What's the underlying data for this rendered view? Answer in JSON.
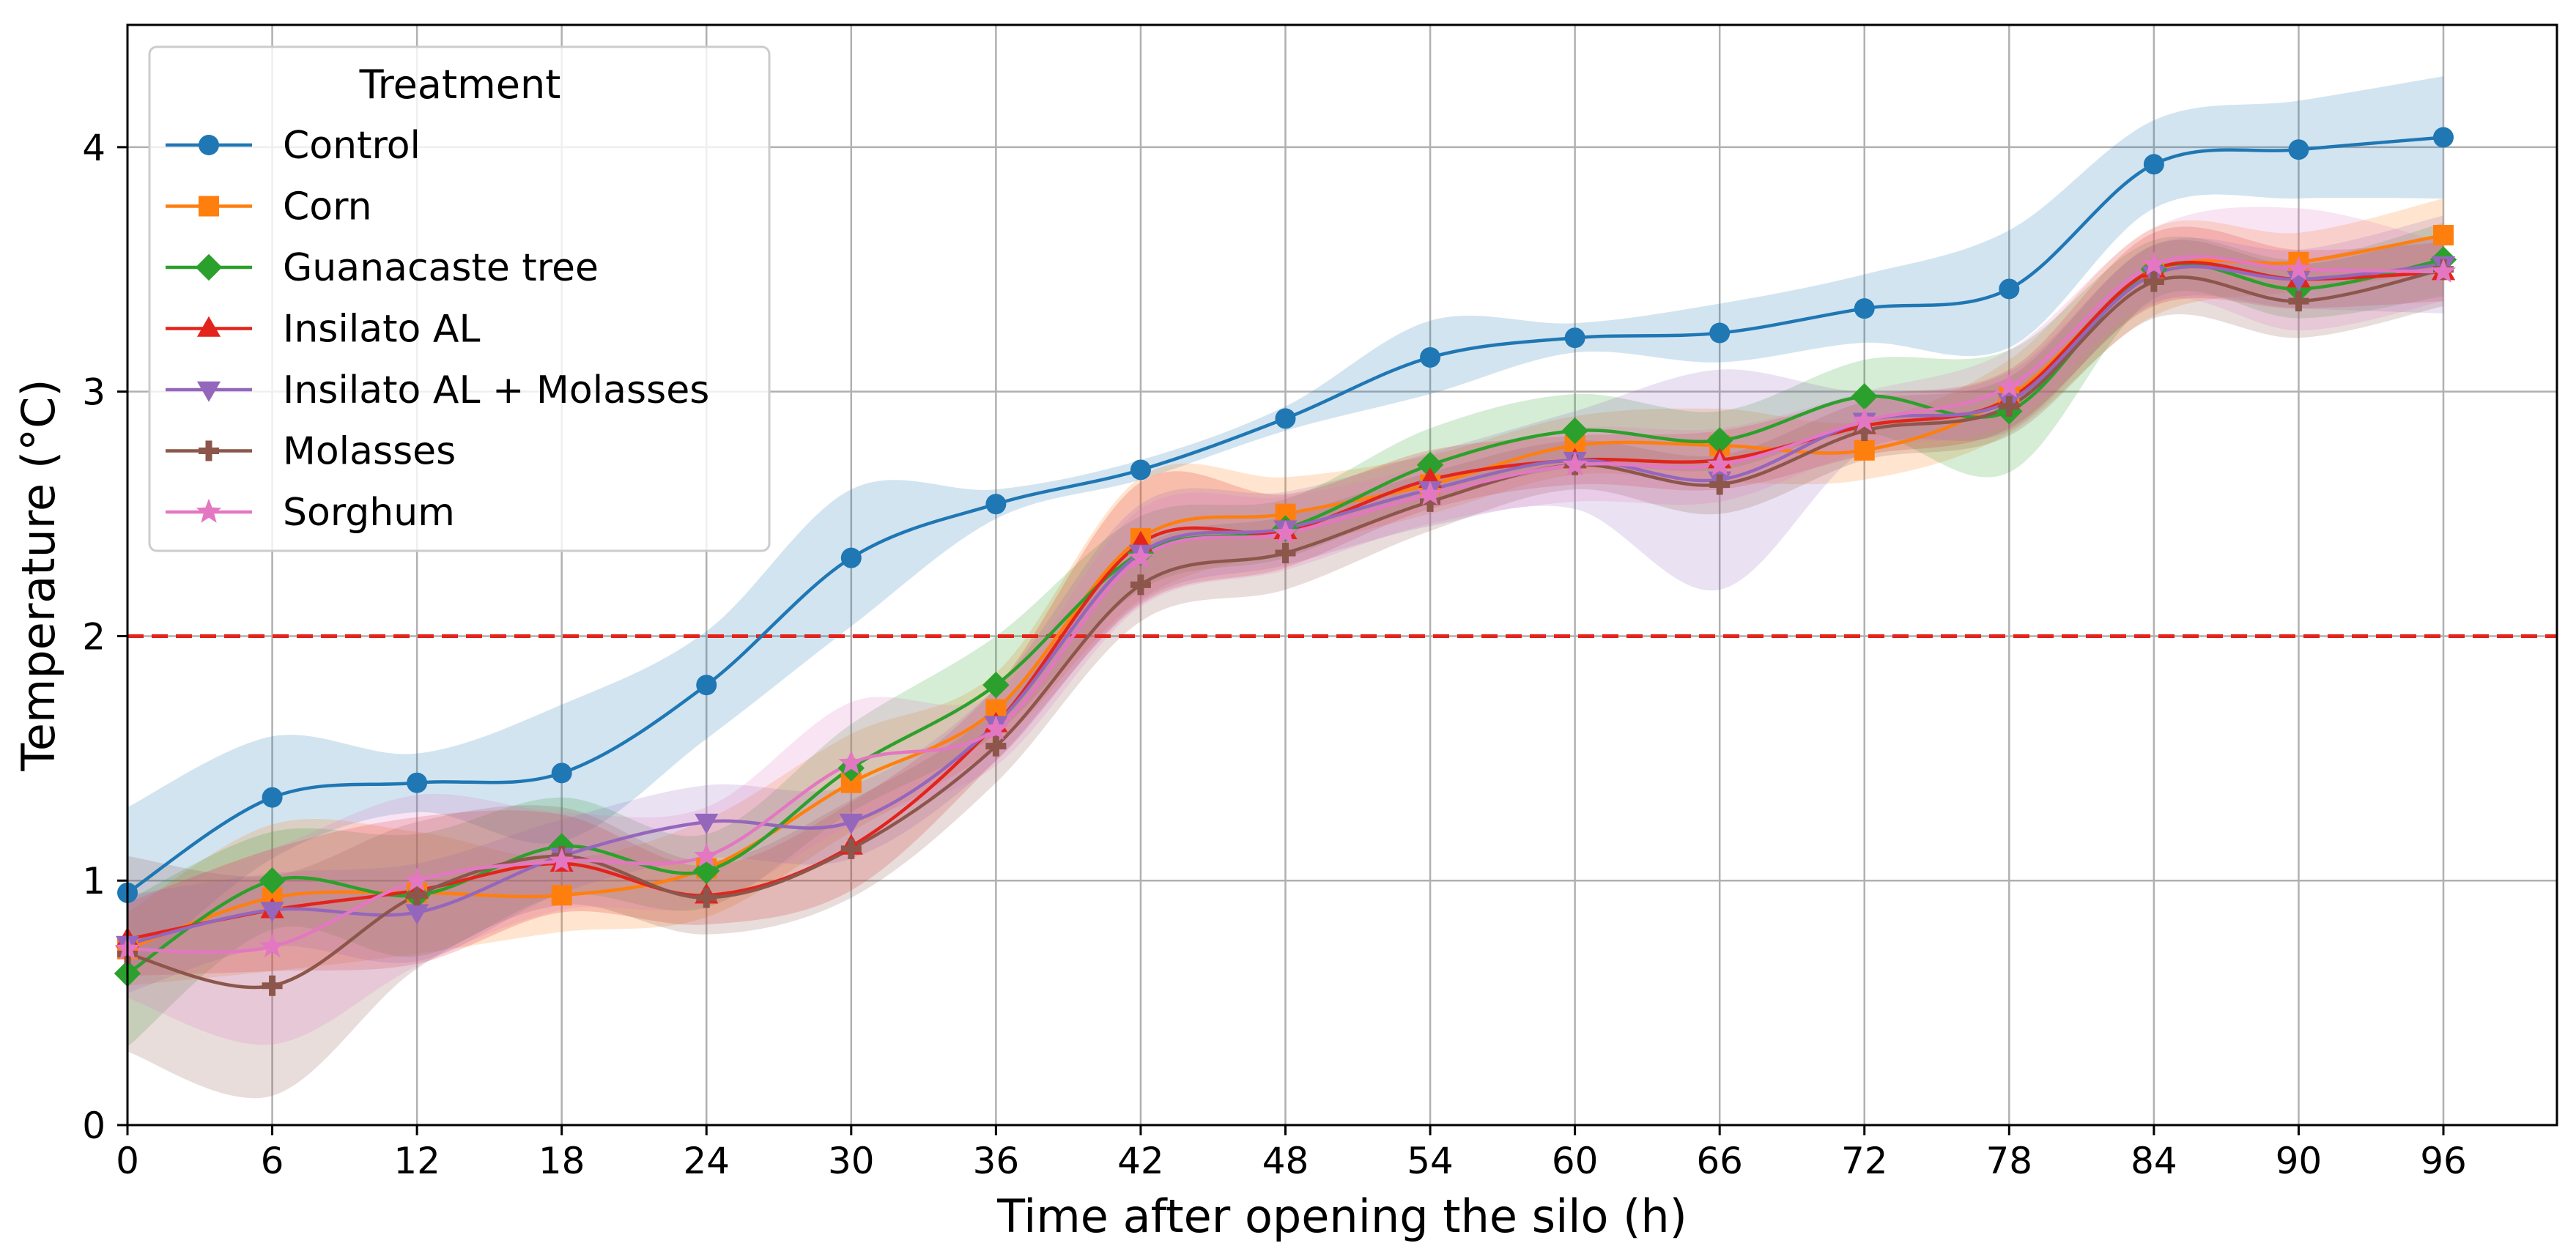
{
  "chart_data": {
    "type": "line",
    "xlabel": "Time after opening the silo (h)",
    "ylabel": "Temperature (°C)",
    "xlim": [
      0,
      96
    ],
    "ylim": [
      0,
      4.5
    ],
    "x": [
      0,
      6,
      12,
      18,
      24,
      30,
      36,
      42,
      48,
      54,
      60,
      66,
      72,
      78,
      84,
      90,
      96
    ],
    "xticks": [
      "0",
      "6",
      "12",
      "18",
      "24",
      "30",
      "36",
      "42",
      "48",
      "54",
      "60",
      "66",
      "72",
      "78",
      "84",
      "90",
      "96"
    ],
    "yticks": [
      "0",
      "1",
      "2",
      "3",
      "4"
    ],
    "grid": true,
    "legend_title": "Treatment",
    "legend_position": "top-left",
    "reference_line": {
      "y": 2,
      "color": "#e3241c",
      "style": "dashed"
    },
    "series": [
      {
        "name": "Control",
        "color": "#1f77b4",
        "marker": "circle",
        "values": [
          0.95,
          1.34,
          1.4,
          1.44,
          1.8,
          2.32,
          2.54,
          2.68,
          2.89,
          3.14,
          3.22,
          3.24,
          3.34,
          3.42,
          3.93,
          3.99,
          4.04
        ],
        "band": [
          0.35,
          0.25,
          0.12,
          0.28,
          0.22,
          0.28,
          0.06,
          0.04,
          0.05,
          0.15,
          0.06,
          0.12,
          0.14,
          0.24,
          0.18,
          0.2,
          0.25
        ]
      },
      {
        "name": "Corn",
        "color": "#ff7f0e",
        "marker": "square",
        "values": [
          0.72,
          0.93,
          0.95,
          0.94,
          1.05,
          1.4,
          1.7,
          2.4,
          2.5,
          2.62,
          2.78,
          2.78,
          2.76,
          2.98,
          3.49,
          3.53,
          3.64
        ],
        "band": [
          0.15,
          0.3,
          0.25,
          0.15,
          0.2,
          0.2,
          0.15,
          0.25,
          0.15,
          0.12,
          0.12,
          0.15,
          0.12,
          0.15,
          0.18,
          0.12,
          0.15
        ]
      },
      {
        "name": "Guanacaste tree",
        "color": "#2ca02c",
        "marker": "diamond",
        "values": [
          0.62,
          1.0,
          0.94,
          1.14,
          1.04,
          1.46,
          1.8,
          2.34,
          2.44,
          2.7,
          2.84,
          2.8,
          2.98,
          2.92,
          3.5,
          3.42,
          3.54
        ],
        "band": [
          0.3,
          0.2,
          0.25,
          0.2,
          0.15,
          0.18,
          0.2,
          0.15,
          0.12,
          0.15,
          0.15,
          0.12,
          0.15,
          0.25,
          0.12,
          0.12,
          0.15
        ]
      },
      {
        "name": "Insilato AL",
        "color": "#e3241c",
        "marker": "triangle-up",
        "values": [
          0.76,
          0.88,
          0.96,
          1.07,
          0.94,
          1.14,
          1.64,
          2.38,
          2.43,
          2.64,
          2.72,
          2.72,
          2.86,
          2.97,
          3.5,
          3.46,
          3.49
        ],
        "band": [
          0.15,
          0.25,
          0.3,
          0.2,
          0.12,
          0.18,
          0.15,
          0.25,
          0.15,
          0.12,
          0.1,
          0.12,
          0.12,
          0.12,
          0.15,
          0.12,
          0.12
        ]
      },
      {
        "name": "Insilato AL + Molasses",
        "color": "#9467bd",
        "marker": "triangle-down",
        "values": [
          0.74,
          0.88,
          0.87,
          1.1,
          1.24,
          1.24,
          1.64,
          2.34,
          2.44,
          2.6,
          2.72,
          2.64,
          2.88,
          2.96,
          3.48,
          3.46,
          3.52
        ],
        "band": [
          0.2,
          0.15,
          0.2,
          0.15,
          0.15,
          0.15,
          0.15,
          0.2,
          0.15,
          0.15,
          0.2,
          0.45,
          0.12,
          0.12,
          0.12,
          0.12,
          0.2
        ]
      },
      {
        "name": "Molasses",
        "color": "#8c564b",
        "marker": "plus",
        "values": [
          0.7,
          0.57,
          0.94,
          1.1,
          0.93,
          1.13,
          1.55,
          2.21,
          2.34,
          2.55,
          2.7,
          2.62,
          2.84,
          2.94,
          3.45,
          3.37,
          3.5
        ],
        "band": [
          0.4,
          0.45,
          0.3,
          0.2,
          0.15,
          0.2,
          0.15,
          0.15,
          0.15,
          0.12,
          0.1,
          0.12,
          0.12,
          0.12,
          0.15,
          0.15,
          0.15
        ]
      },
      {
        "name": "Sorghum",
        "color": "#e377c2",
        "marker": "star",
        "values": [
          0.72,
          0.73,
          1.0,
          1.08,
          1.1,
          1.48,
          1.62,
          2.32,
          2.42,
          2.58,
          2.7,
          2.7,
          2.88,
          3.02,
          3.52,
          3.5,
          3.49
        ],
        "band": [
          0.2,
          0.4,
          0.35,
          0.2,
          0.2,
          0.25,
          0.15,
          0.2,
          0.15,
          0.12,
          0.15,
          0.15,
          0.12,
          0.15,
          0.15,
          0.25,
          0.12
        ]
      }
    ]
  }
}
